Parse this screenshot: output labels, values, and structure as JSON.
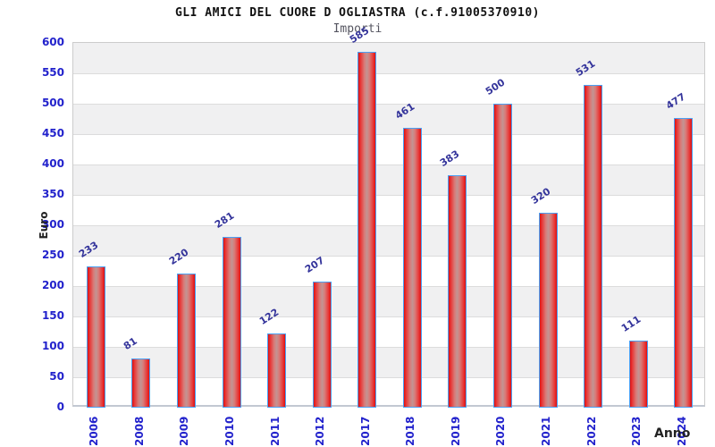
{
  "header": {
    "title": "GLI AMICI DEL CUORE D OGLIASTRA (c.f.91005370910)",
    "subtitle": "Importi"
  },
  "chart_data": {
    "type": "bar",
    "title": "GLI AMICI DEL CUORE D OGLIASTRA (c.f.91005370910)",
    "subtitle": "Importi",
    "xlabel": "Anno",
    "ylabel": "Euro",
    "categories": [
      "2006",
      "2008",
      "2009",
      "2010",
      "2011",
      "2012",
      "2017",
      "2018",
      "2019",
      "2020",
      "2021",
      "2022",
      "2023",
      "2024"
    ],
    "values": [
      233,
      81,
      220,
      281,
      122,
      207,
      585,
      461,
      383,
      500,
      320,
      531,
      111,
      477
    ],
    "ylim": [
      0,
      600
    ],
    "ytick_step": 50,
    "yticks": [
      "0",
      "50",
      "100",
      "150",
      "200",
      "250",
      "300",
      "350",
      "400",
      "450",
      "500",
      "550",
      "600"
    ],
    "grid": true,
    "band_alternate": true,
    "legend_position": "none"
  },
  "colors": {
    "tick_label": "#2222cc",
    "value_label": "#34349b",
    "bar_border": "#4aa0f5",
    "bar_edge": "#dd1010",
    "bar_inner": "#e83434",
    "bar_light": "#d97b78",
    "bar_center": "#c29493",
    "band_gray": "#f0f0f1",
    "gridline": "#dcdcdc",
    "plot_border": "#cccccc",
    "axis_title": "#222222",
    "subtitle_text": "#555560",
    "background": "#ffffff"
  }
}
